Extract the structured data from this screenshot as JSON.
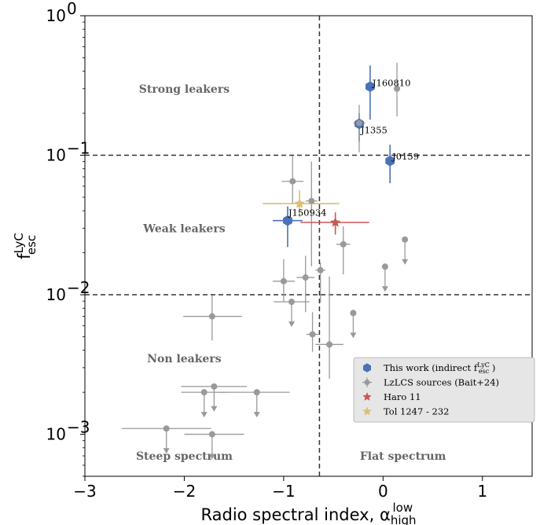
{
  "chart_data": {
    "type": "scatter",
    "xlabel": "Radio spectral index, α_high^low",
    "ylabel": "f_esc^LyC",
    "xscale": "linear",
    "yscale": "log",
    "xlim": [
      -3,
      1.5
    ],
    "ylim": [
      0.0005,
      1
    ],
    "x_ticks": [
      -3,
      -2,
      -1,
      0,
      1
    ],
    "x_tick_labels": [
      "−3",
      "−2",
      "−1",
      "0",
      "1"
    ],
    "y_ticks": [
      0.001,
      0.01,
      0.1,
      1
    ],
    "y_tick_labels": [
      {
        "base": "10",
        "exp": "−3"
      },
      {
        "base": "10",
        "exp": "−2"
      },
      {
        "base": "10",
        "exp": "−1"
      },
      {
        "base": "10",
        "exp": "0"
      }
    ],
    "reference_lines": {
      "vertical_x": -0.64,
      "horizontal_y": [
        0.1,
        0.01
      ]
    },
    "grid": false,
    "region_labels": [
      {
        "text": "Strong leakers",
        "x": -2.0,
        "y": 0.3
      },
      {
        "text": "Weak leakers",
        "x": -2.0,
        "y": 0.03
      },
      {
        "text": "Non leakers",
        "x": -2.0,
        "y": 0.0035
      },
      {
        "text": "Steep spectrum",
        "x": -2.0,
        "y": 0.0007
      },
      {
        "text": "Flat spectrum",
        "x": 0.2,
        "y": 0.0007
      }
    ],
    "legend": {
      "position": "lower-right",
      "entries": [
        {
          "label": "This work (indirect f",
          "sup": "LyC",
          "sub": "esc",
          "tail": " )",
          "marker": "hexagon",
          "color": "#4a72b8"
        },
        {
          "label": "LzLCS sources (Bait+24)",
          "marker": "plus-dot",
          "color": "#999999"
        },
        {
          "label": "Haro 11",
          "marker": "star",
          "color": "#cc5555"
        },
        {
          "label": "Tol 1247 - 232",
          "marker": "star",
          "color": "#d8bf72"
        }
      ]
    },
    "series": [
      {
        "name": "This work (indirect f_esc^LyC)",
        "color": "#4a72b8",
        "marker": "hexagon",
        "points": [
          {
            "label": "J160810",
            "x": -0.13,
            "y": 0.31,
            "ylo": 0.18,
            "yhi": 0.44
          },
          {
            "label": "J1355",
            "x": -0.24,
            "y": 0.168,
            "ylo": 0.125,
            "yhi": 0.2
          },
          {
            "label": "J0159",
            "x": 0.07,
            "y": 0.091,
            "ylo": 0.063,
            "yhi": 0.119
          },
          {
            "label": "J150934",
            "x": -0.96,
            "y": 0.034,
            "ylo": 0.022,
            "yhi": 0.043,
            "xlo": -1.11,
            "xhi": -0.81
          }
        ]
      },
      {
        "name": "LzLCS sources (Bait+24)",
        "color": "#999999",
        "marker": "dot",
        "points": [
          {
            "x": 0.14,
            "y": 0.3,
            "ylo": 0.19,
            "yhi": 0.46
          },
          {
            "x": -0.24,
            "y": 0.17,
            "ylo": 0.105,
            "yhi": 0.23,
            "xlo": -0.3,
            "xhi": -0.18
          },
          {
            "x": -0.91,
            "y": 0.065,
            "ylo": 0.045,
            "yhi": 0.099,
            "xlo": -1.02,
            "xhi": -0.8
          },
          {
            "x": -0.72,
            "y": 0.047,
            "ylo": 0.016,
            "yhi": 0.09,
            "xlo": -0.78,
            "xhi": -0.66
          },
          {
            "x": -0.4,
            "y": 0.023,
            "ylo": 0.014,
            "yhi": 0.031,
            "xlo": -0.47,
            "xhi": -0.33
          },
          {
            "x": -1.0,
            "y": 0.0125,
            "ylo": 0.0089,
            "yhi": 0.018,
            "xlo": -1.11,
            "xhi": -0.89
          },
          {
            "x": -0.78,
            "y": 0.0133,
            "ylo": 0.0075,
            "yhi": 0.019,
            "xlo": -0.87,
            "xhi": -0.69
          },
          {
            "x": -0.63,
            "y": 0.015,
            "ylo": 0.0088,
            "yhi": 0.017,
            "xlo": -0.68,
            "xhi": -0.58
          },
          {
            "x": -0.92,
            "y": 0.0089,
            "xlo": -1.1,
            "xhi": -0.74,
            "upper_limit": true
          },
          {
            "x": -0.3,
            "y": 0.0074,
            "upper_limit": true
          },
          {
            "x": 0.02,
            "y": 0.0159,
            "upper_limit": true
          },
          {
            "x": 0.22,
            "y": 0.0249,
            "upper_limit": true
          },
          {
            "x": -1.72,
            "y": 0.007,
            "ylo": 0.0047,
            "yhi": 0.0099,
            "xlo": -2.01,
            "xhi": -1.42
          },
          {
            "x": -0.71,
            "y": 0.0052,
            "ylo": 0.0039,
            "yhi": 0.0075,
            "xlo": -0.77,
            "xhi": -0.65
          },
          {
            "x": -0.54,
            "y": 0.0044,
            "ylo": 0.0025,
            "yhi": 0.0135,
            "xlo": -0.68,
            "xhi": -0.4
          },
          {
            "x": -1.8,
            "y": 0.002,
            "xlo": -2.03,
            "xhi": -1.58,
            "upper_limit": true
          },
          {
            "x": -1.7,
            "y": 0.0022,
            "xlo": -2.03,
            "xhi": -1.37,
            "upper_limit": true
          },
          {
            "x": -1.27,
            "y": 0.002,
            "xlo": -1.66,
            "xhi": -0.94,
            "upper_limit": true
          },
          {
            "x": -2.18,
            "y": 0.0011,
            "xlo": -2.63,
            "xhi": -1.73,
            "upper_limit": true
          },
          {
            "x": -1.72,
            "y": 0.001,
            "xlo": -2.0,
            "xhi": -1.4,
            "upper_limit": true
          }
        ]
      },
      {
        "name": "Haro 11",
        "color": "#cc5555",
        "marker": "star",
        "points": [
          {
            "x": -0.48,
            "y": 0.033,
            "ylo": 0.027,
            "yhi": 0.039,
            "xlo": -0.83,
            "xhi": -0.14
          }
        ]
      },
      {
        "name": "Tol 1247 - 232",
        "color": "#d8bf72",
        "marker": "star",
        "points": [
          {
            "x": -0.84,
            "y": 0.045,
            "ylo": 0.036,
            "yhi": 0.056,
            "xlo": -1.21,
            "xhi": -0.44
          }
        ]
      }
    ]
  }
}
